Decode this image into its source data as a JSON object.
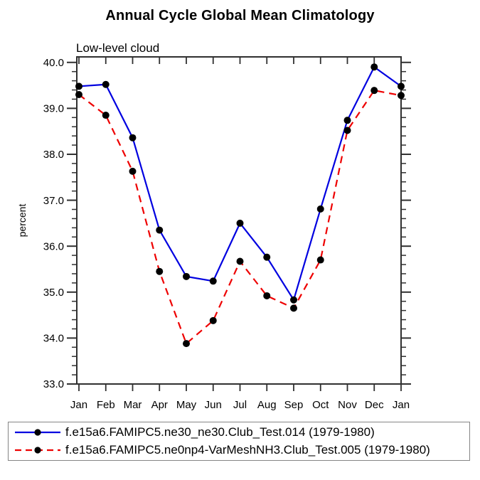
{
  "chart_data": {
    "type": "line",
    "title": "Annual Cycle Global Mean Climatology",
    "subtitle": "Low-level cloud",
    "ylabel": "percent",
    "xlabel": "",
    "x_categories": [
      "Jan",
      "Feb",
      "Mar",
      "Apr",
      "May",
      "Jun",
      "Jul",
      "Aug",
      "Sep",
      "Oct",
      "Nov",
      "Dec",
      "Jan"
    ],
    "ylim": [
      33.0,
      40.12
    ],
    "yticks_major": [
      33.0,
      34.0,
      35.0,
      36.0,
      37.0,
      38.0,
      39.0,
      40.0
    ],
    "ytick_decimal_places": 1,
    "yminor_step": 0.2,
    "grid": false,
    "legend_position": "bottom-left-box",
    "series": [
      {
        "name": "f.e15a6.FAMIPC5.ne30_ne30.Club_Test.014 (1979-1980)",
        "color": "#0000e0",
        "line_style": "solid",
        "marker": "filled-circle",
        "marker_color": "#000000",
        "values": [
          39.48,
          39.52,
          38.36,
          36.35,
          35.34,
          35.24,
          36.5,
          35.76,
          34.83,
          36.81,
          38.74,
          39.9,
          39.48
        ]
      },
      {
        "name": "f.e15a6.FAMIPC5.ne0np4-VarMeshNH3.Club_Test.005 (1979-1980)",
        "color": "#ee0000",
        "line_style": "dashed",
        "marker": "filled-circle",
        "marker_color": "#000000",
        "values": [
          39.3,
          38.85,
          37.63,
          35.45,
          33.88,
          34.38,
          35.67,
          34.92,
          34.65,
          35.7,
          38.52,
          39.39,
          39.28
        ]
      }
    ]
  },
  "colors": {
    "background": "#ffffff",
    "axis": "#303030",
    "text": "#000000",
    "legend_border": "#858585"
  }
}
